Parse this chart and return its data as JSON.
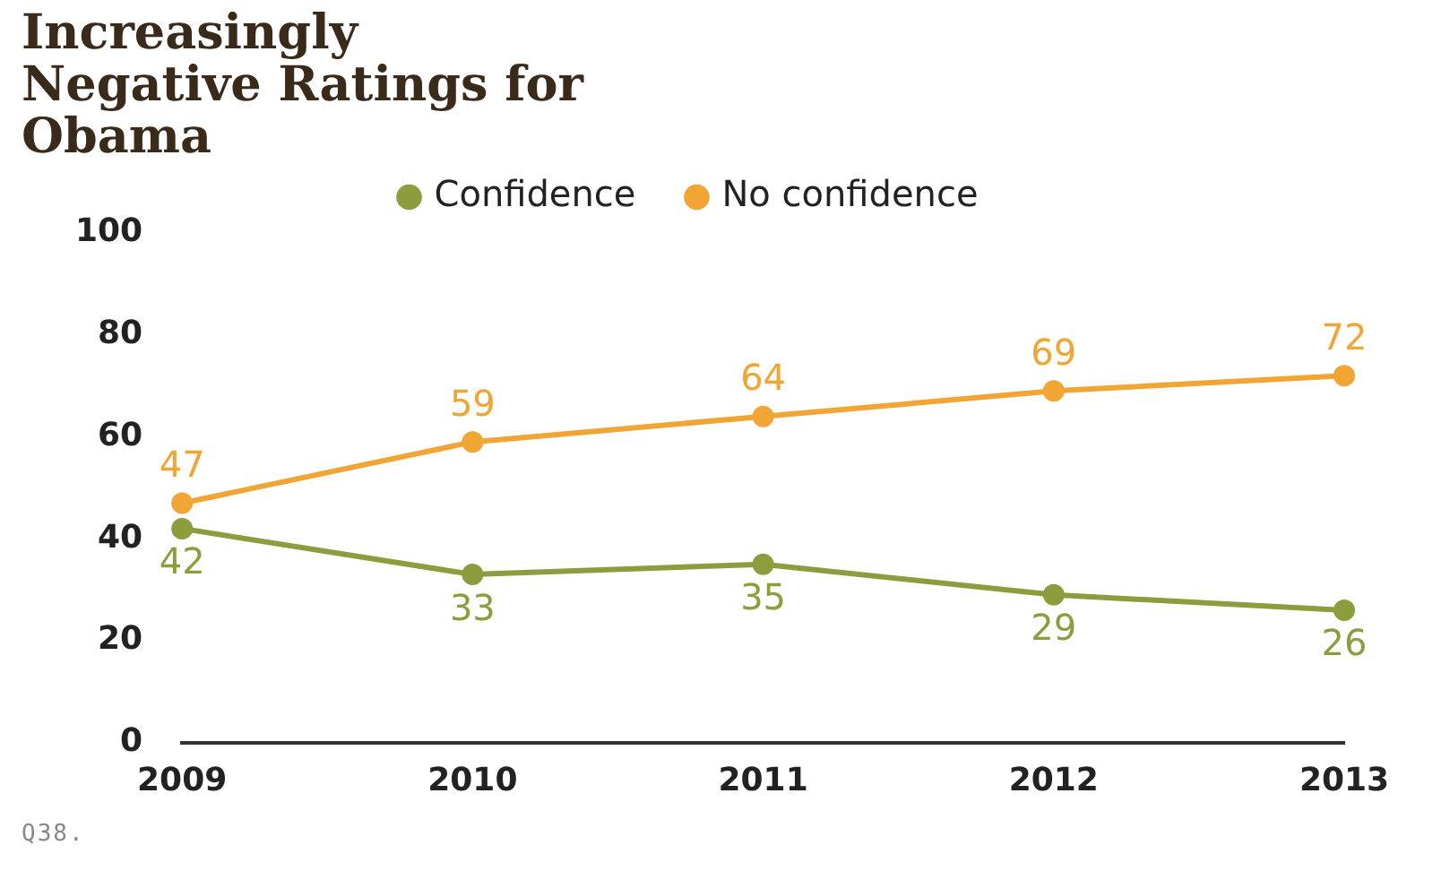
{
  "chart_data": {
    "type": "line",
    "title": "Increasingly Negative Ratings for Obama",
    "categories": [
      "2009",
      "2010",
      "2011",
      "2012",
      "2013"
    ],
    "series": [
      {
        "name": "Confidence",
        "color": "#8c9d3e",
        "values": [
          42,
          33,
          35,
          29,
          26
        ]
      },
      {
        "name": "No confidence",
        "color": "#f0a534",
        "values": [
          47,
          59,
          64,
          69,
          72
        ]
      }
    ],
    "ylim": [
      0,
      100
    ],
    "yticks": [
      0,
      20,
      40,
      60,
      80,
      100
    ],
    "grid": false,
    "legend": "top",
    "marker": "circle",
    "line_style": "solid",
    "data_labels": true,
    "annotations": [
      "Q38."
    ]
  }
}
